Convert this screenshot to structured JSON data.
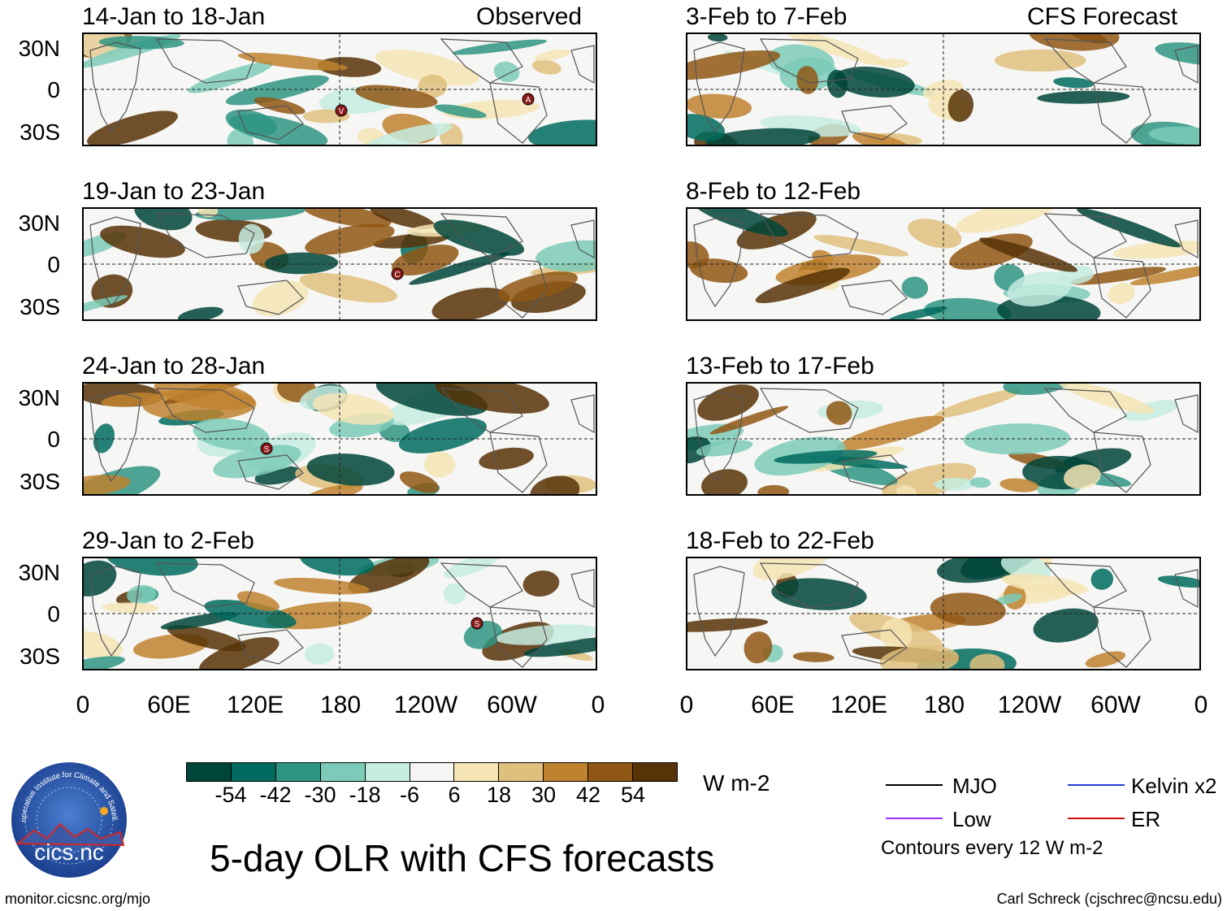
{
  "panels": {
    "left": [
      {
        "title": "14-Jan to 18-Jan",
        "tag": "Observed",
        "markers": [
          "A",
          "V"
        ]
      },
      {
        "title": "19-Jan to 23-Jan",
        "tag": "",
        "markers": [
          "C"
        ]
      },
      {
        "title": "24-Jan to 28-Jan",
        "tag": "",
        "markers": [
          "S"
        ]
      },
      {
        "title": "29-Jan to 2-Feb",
        "tag": "",
        "markers": [
          "S"
        ]
      }
    ],
    "right": [
      {
        "title": "3-Feb to 7-Feb",
        "tag": "CFS Forecast"
      },
      {
        "title": "8-Feb to 12-Feb",
        "tag": ""
      },
      {
        "title": "13-Feb to 17-Feb",
        "tag": ""
      },
      {
        "title": "18-Feb to 22-Feb",
        "tag": ""
      }
    ]
  },
  "axes": {
    "lat_labels": [
      "30N",
      "0",
      "30S"
    ],
    "lon_labels": [
      "0",
      "60E",
      "120E",
      "180",
      "120W",
      "60W",
      "0"
    ]
  },
  "colorbar": {
    "colors": [
      "#00453a",
      "#006b5e",
      "#2f9583",
      "#7ccbb8",
      "#c6ece0",
      "#f5f5f3",
      "#f4e4b4",
      "#dfc07c",
      "#bf832f",
      "#8f5714",
      "#573307"
    ],
    "tick_labels": [
      "-54",
      "-42",
      "-30",
      "-18",
      "-6",
      "6",
      "18",
      "30",
      "42",
      "54"
    ],
    "units": "W m-2"
  },
  "title": "5-day OLR with CFS forecasts",
  "legend": {
    "mjo": {
      "label": "MJO",
      "color": "#000000"
    },
    "low": {
      "label": "Low",
      "color": "#9b30ff"
    },
    "kelvin": {
      "label": "Kelvin x2",
      "color": "#2040d0"
    },
    "er": {
      "label": "ER",
      "color": "#d01010"
    },
    "contour_note": "Contours every 12 W m-2"
  },
  "logo": {
    "text": "cics.nc",
    "ring_text": "Cooperative Institute for Climate and Satellites"
  },
  "footer": {
    "url": "monitor.cicsnc.org/mjo",
    "credit": "Carl Schreck (cjschrec@ncsu.edu)"
  }
}
